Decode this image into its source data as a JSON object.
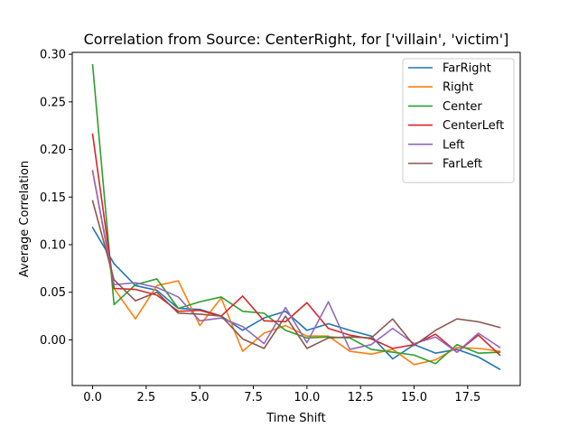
{
  "chart_data": {
    "type": "line",
    "title": "Correlation from Source: CenterRight, for ['villain', 'victim']",
    "xlabel": "Time Shift",
    "ylabel": "Average Correlation",
    "xlim": [
      -0.95,
      19.95
    ],
    "ylim": [
      -0.048,
      0.302
    ],
    "xticks": [
      0,
      2.5,
      5,
      7.5,
      10,
      12.5,
      15,
      17.5
    ],
    "xtick_labels": [
      "0.0",
      "2.5",
      "5.0",
      "7.5",
      "10.0",
      "12.5",
      "15.0",
      "17.5"
    ],
    "yticks": [
      0,
      0.05,
      0.1,
      0.15,
      0.2,
      0.25,
      0.3
    ],
    "ytick_labels": [
      "0.00",
      "0.05",
      "0.10",
      "0.15",
      "0.20",
      "0.25",
      "0.30"
    ],
    "grid": false,
    "legend_position": "top-right",
    "x": [
      0,
      1,
      2,
      3,
      4,
      5,
      6,
      7,
      8,
      9,
      10,
      11,
      12,
      13,
      14,
      15,
      16,
      17,
      18,
      19
    ],
    "series": [
      {
        "name": "FarRight",
        "color": "#1f77b4",
        "values": [
          0.118,
          0.08,
          0.057,
          0.052,
          0.033,
          0.032,
          0.025,
          0.01,
          0.023,
          0.03,
          0.01,
          0.017,
          0.01,
          0.004,
          -0.02,
          -0.005,
          -0.014,
          -0.01,
          -0.018,
          -0.031
        ]
      },
      {
        "name": "Right",
        "color": "#ff7f0e",
        "values": [
          0.178,
          0.054,
          0.022,
          0.057,
          0.062,
          0.015,
          0.044,
          -0.012,
          0.007,
          0.015,
          0.004,
          0.004,
          -0.012,
          -0.015,
          -0.01,
          -0.026,
          -0.021,
          -0.008,
          -0.009,
          -0.012
        ]
      },
      {
        "name": "Center",
        "color": "#2ca02c",
        "values": [
          0.289,
          0.037,
          0.058,
          0.064,
          0.033,
          0.04,
          0.045,
          0.03,
          0.028,
          0.01,
          0.002,
          0.003,
          0.002,
          -0.01,
          -0.013,
          -0.016,
          -0.025,
          -0.005,
          -0.014,
          -0.013
        ]
      },
      {
        "name": "CenterLeft",
        "color": "#d62728",
        "values": [
          0.216,
          0.054,
          0.053,
          0.047,
          0.03,
          0.031,
          0.025,
          0.046,
          0.02,
          0.019,
          0.039,
          0.012,
          0.005,
          0.001,
          -0.009,
          -0.005,
          0.006,
          -0.013,
          0.005,
          -0.016
        ]
      },
      {
        "name": "Left",
        "color": "#9467bd",
        "values": [
          0.177,
          0.058,
          0.06,
          0.055,
          0.045,
          0.02,
          0.023,
          0.014,
          -0.004,
          0.034,
          -0.003,
          0.04,
          -0.01,
          -0.005,
          0.012,
          -0.004,
          0.003,
          -0.013,
          0.007,
          -0.008
        ]
      },
      {
        "name": "FarLeft",
        "color": "#8c564b",
        "values": [
          0.146,
          0.063,
          0.041,
          0.05,
          0.028,
          0.027,
          0.025,
          0.001,
          -0.009,
          0.025,
          -0.009,
          0.002,
          0.003,
          0.002,
          0.022,
          -0.006,
          0.01,
          0.022,
          0.019,
          0.013
        ]
      }
    ]
  }
}
